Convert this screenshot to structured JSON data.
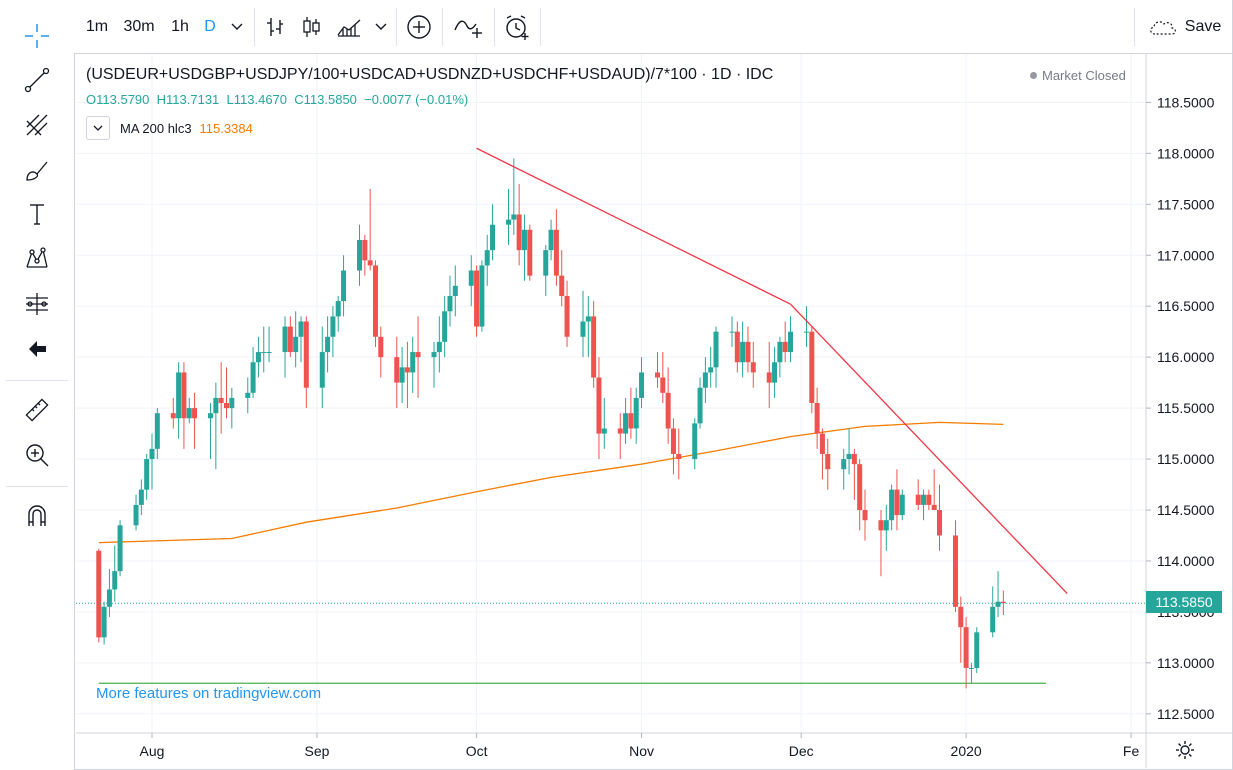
{
  "toolbar": {
    "intervals": [
      "1m",
      "30m",
      "1h",
      "D"
    ],
    "active_interval": "D",
    "save_label": "Save"
  },
  "legend": {
    "title": "(USDEUR+USDGBP+USDJPY/100+USDCAD+USDNZD+USDCHF+USDAUD)/7*100 · 1D · IDC",
    "open_label": "O",
    "open": "113.5790",
    "high_label": "H",
    "high": "113.7131",
    "low_label": "L",
    "low": "113.4670",
    "close_label": "C",
    "close": "113.5850",
    "change": "−0.0077 (−0.01%)",
    "ma_label": "MA 200 hlc3",
    "ma_value": "115.3384"
  },
  "status": "Market Closed",
  "promo": "More features on tradingview.com",
  "last_price": "113.5850",
  "colors": {
    "up": "#26a69a",
    "down": "#ef5350",
    "ma": "#f57c00",
    "trendline": "#f23645",
    "support": "#4caf50",
    "accent": "#2196f3"
  },
  "icons": [
    "crosshair-icon",
    "trend-line-icon",
    "pitchfork-icon",
    "brush-icon",
    "text-icon",
    "pattern-icon",
    "prediction-icon",
    "back-arrow-icon",
    "ruler-icon",
    "zoom-in-icon",
    "magnet-icon",
    "chevron-down-icon",
    "bar-chart-icon",
    "candles-icon",
    "area-chart-icon",
    "add-indicator-icon",
    "compare-icon",
    "alert-icon",
    "cloud-icon",
    "gear-icon"
  ],
  "chart_data": {
    "type": "candlestick",
    "y_ticks": [
      "118.5000",
      "118.0000",
      "117.5000",
      "117.0000",
      "116.5000",
      "116.0000",
      "115.5000",
      "115.0000",
      "114.5000",
      "114.0000",
      "113.5000",
      "113.0000",
      "112.5000"
    ],
    "x_ticks": [
      "Aug",
      "Sep",
      "Oct",
      "Nov",
      "Dec",
      "2020",
      "Fe"
    ],
    "ylim": [
      112.35,
      118.85
    ],
    "x_range": [
      "2019-07-22",
      "2020-02-03"
    ],
    "ohlc": [
      [
        "2019-07-22",
        114.1,
        114.12,
        113.2,
        113.25
      ],
      [
        "2019-07-23",
        113.25,
        113.6,
        113.18,
        113.55
      ],
      [
        "2019-07-24",
        113.55,
        113.92,
        113.45,
        113.72
      ],
      [
        "2019-07-25",
        113.72,
        114.15,
        113.6,
        113.9
      ],
      [
        "2019-07-26",
        113.9,
        114.4,
        113.85,
        114.35
      ],
      [
        "2019-07-29",
        114.35,
        114.65,
        114.3,
        114.55
      ],
      [
        "2019-07-30",
        114.55,
        114.8,
        114.45,
        114.7
      ],
      [
        "2019-07-31",
        114.7,
        115.05,
        114.6,
        115.0
      ],
      [
        "2019-08-01",
        115.0,
        115.25,
        114.7,
        115.1
      ],
      [
        "2019-08-02",
        115.1,
        115.5,
        115.0,
        115.45
      ],
      [
        "2019-08-05",
        115.45,
        115.6,
        115.3,
        115.4
      ],
      [
        "2019-08-06",
        115.4,
        115.95,
        115.2,
        115.85
      ],
      [
        "2019-08-07",
        115.85,
        115.95,
        115.1,
        115.4
      ],
      [
        "2019-08-08",
        115.4,
        115.6,
        115.35,
        115.5
      ],
      [
        "2019-08-09",
        115.5,
        115.65,
        115.1,
        115.4
      ],
      [
        "2019-08-12",
        115.4,
        115.55,
        115.0,
        115.45
      ],
      [
        "2019-08-13",
        115.45,
        115.75,
        114.9,
        115.6
      ],
      [
        "2019-08-14",
        115.6,
        115.95,
        115.25,
        115.55
      ],
      [
        "2019-08-15",
        115.55,
        115.9,
        115.4,
        115.5
      ],
      [
        "2019-08-16",
        115.5,
        115.7,
        115.3,
        115.6
      ],
      [
        "2019-08-19",
        115.6,
        115.8,
        115.45,
        115.65
      ],
      [
        "2019-08-20",
        115.65,
        116.1,
        115.6,
        115.95
      ],
      [
        "2019-08-21",
        115.95,
        116.2,
        115.8,
        116.05
      ],
      [
        "2019-08-22",
        116.05,
        116.3,
        115.85,
        116.05
      ],
      [
        "2019-08-23",
        116.05,
        116.3,
        115.95,
        116.05
      ],
      [
        "2019-08-26",
        116.05,
        116.4,
        115.8,
        116.3
      ],
      [
        "2019-08-27",
        116.3,
        116.4,
        116.0,
        116.05
      ],
      [
        "2019-08-28",
        116.05,
        116.45,
        115.9,
        116.2
      ],
      [
        "2019-08-29",
        116.2,
        116.4,
        115.95,
        116.35
      ],
      [
        "2019-08-30",
        116.35,
        116.4,
        115.5,
        115.7
      ],
      [
        "2019-09-02",
        115.7,
        116.3,
        115.5,
        116.05
      ],
      [
        "2019-09-03",
        116.05,
        116.4,
        115.85,
        116.2
      ],
      [
        "2019-09-04",
        116.2,
        116.5,
        116.0,
        116.4
      ],
      [
        "2019-09-05",
        116.4,
        116.6,
        116.25,
        116.55
      ],
      [
        "2019-09-06",
        116.55,
        117.0,
        116.4,
        116.85
      ],
      [
        "2019-09-09",
        116.85,
        117.3,
        116.7,
        117.15
      ],
      [
        "2019-09-10",
        117.15,
        117.2,
        116.8,
        116.95
      ],
      [
        "2019-09-11",
        116.95,
        117.65,
        116.85,
        116.9
      ],
      [
        "2019-09-12",
        116.9,
        116.95,
        116.1,
        116.2
      ],
      [
        "2019-09-13",
        116.2,
        116.3,
        115.8,
        116.0
      ],
      [
        "2019-09-16",
        116.0,
        116.2,
        115.5,
        115.75
      ],
      [
        "2019-09-17",
        115.75,
        116.1,
        115.55,
        115.9
      ],
      [
        "2019-09-18",
        115.9,
        116.15,
        115.5,
        115.85
      ],
      [
        "2019-09-19",
        115.85,
        116.2,
        115.65,
        116.05
      ],
      [
        "2019-09-20",
        116.05,
        116.4,
        115.6,
        116.0
      ],
      [
        "2019-09-23",
        116.0,
        116.15,
        115.7,
        116.05
      ],
      [
        "2019-09-24",
        116.05,
        116.4,
        115.85,
        116.15
      ],
      [
        "2019-09-25",
        116.15,
        116.6,
        116.0,
        116.45
      ],
      [
        "2019-09-26",
        116.45,
        116.8,
        116.3,
        116.6
      ],
      [
        "2019-09-27",
        116.6,
        116.9,
        116.4,
        116.7
      ],
      [
        "2019-09-30",
        116.7,
        117.0,
        116.5,
        116.85
      ],
      [
        "2019-10-01",
        116.85,
        116.9,
        116.2,
        116.3
      ],
      [
        "2019-10-02",
        116.3,
        116.95,
        116.25,
        116.9
      ],
      [
        "2019-10-03",
        116.9,
        117.2,
        116.7,
        117.05
      ],
      [
        "2019-10-04",
        117.05,
        117.5,
        116.95,
        117.3
      ],
      [
        "2019-10-07",
        117.3,
        117.65,
        117.1,
        117.35
      ],
      [
        "2019-10-08",
        117.35,
        117.95,
        117.2,
        117.4
      ],
      [
        "2019-10-09",
        117.4,
        117.7,
        116.9,
        117.05
      ],
      [
        "2019-10-10",
        117.05,
        117.4,
        116.75,
        117.25
      ],
      [
        "2019-10-11",
        117.25,
        117.3,
        116.75,
        116.8
      ],
      [
        "2019-10-14",
        116.8,
        117.1,
        116.6,
        117.05
      ],
      [
        "2019-10-15",
        117.05,
        117.35,
        116.95,
        117.25
      ],
      [
        "2019-10-16",
        117.25,
        117.45,
        116.7,
        116.8
      ],
      [
        "2019-10-17",
        116.8,
        117.05,
        116.5,
        116.6
      ],
      [
        "2019-10-18",
        116.6,
        116.75,
        116.1,
        116.2
      ],
      [
        "2019-10-21",
        116.2,
        116.65,
        116.0,
        116.35
      ],
      [
        "2019-10-22",
        116.35,
        116.6,
        116.0,
        116.4
      ],
      [
        "2019-10-23",
        116.4,
        116.55,
        115.7,
        115.8
      ],
      [
        "2019-10-24",
        115.8,
        116.0,
        115.0,
        115.25
      ],
      [
        "2019-10-25",
        115.25,
        115.6,
        115.1,
        115.3
      ],
      [
        "2019-10-28",
        115.3,
        115.45,
        115.0,
        115.25
      ],
      [
        "2019-10-29",
        115.25,
        115.6,
        115.15,
        115.45
      ],
      [
        "2019-10-30",
        115.45,
        115.7,
        115.2,
        115.3
      ],
      [
        "2019-10-31",
        115.3,
        115.7,
        115.15,
        115.6
      ],
      [
        "2019-11-01",
        115.6,
        116.0,
        115.5,
        115.85
      ],
      [
        "2019-11-04",
        115.85,
        116.05,
        115.7,
        115.8
      ],
      [
        "2019-11-05",
        115.8,
        116.05,
        115.55,
        115.65
      ],
      [
        "2019-11-06",
        115.65,
        115.9,
        115.15,
        115.3
      ],
      [
        "2019-11-07",
        115.3,
        115.4,
        114.85,
        115.05
      ],
      [
        "2019-11-08",
        115.05,
        115.3,
        114.8,
        115.0
      ],
      [
        "2019-11-11",
        115.0,
        115.4,
        114.9,
        115.35
      ],
      [
        "2019-11-12",
        115.35,
        115.8,
        115.3,
        115.7
      ],
      [
        "2019-11-13",
        115.7,
        116.0,
        115.55,
        115.85
      ],
      [
        "2019-11-14",
        115.85,
        116.1,
        115.7,
        115.9
      ],
      [
        "2019-11-15",
        115.9,
        116.3,
        115.7,
        116.25
      ],
      [
        "2019-11-18",
        116.25,
        116.4,
        116.1,
        116.25
      ],
      [
        "2019-11-19",
        116.25,
        116.35,
        115.85,
        115.95
      ],
      [
        "2019-11-20",
        115.95,
        116.35,
        115.8,
        116.15
      ],
      [
        "2019-11-21",
        116.15,
        116.3,
        115.85,
        115.95
      ],
      [
        "2019-11-22",
        115.95,
        116.15,
        115.7,
        115.85
      ],
      [
        "2019-11-25",
        115.85,
        116.15,
        115.5,
        115.75
      ],
      [
        "2019-11-26",
        115.75,
        116.1,
        115.6,
        115.95
      ],
      [
        "2019-11-27",
        115.95,
        116.2,
        115.8,
        116.15
      ],
      [
        "2019-11-28",
        116.15,
        116.35,
        115.95,
        116.05
      ],
      [
        "2019-11-29",
        116.05,
        116.4,
        115.95,
        116.25
      ],
      [
        "2019-12-02",
        116.25,
        116.5,
        116.1,
        116.25
      ],
      [
        "2019-12-03",
        116.25,
        116.3,
        115.45,
        115.55
      ],
      [
        "2019-12-04",
        115.55,
        115.7,
        115.1,
        115.25
      ],
      [
        "2019-12-05",
        115.25,
        115.3,
        114.8,
        115.05
      ],
      [
        "2019-12-06",
        115.05,
        115.2,
        114.7,
        114.9
      ],
      [
        "2019-12-09",
        114.9,
        115.1,
        114.7,
        115.0
      ],
      [
        "2019-12-10",
        115.0,
        115.3,
        114.85,
        115.05
      ],
      [
        "2019-12-11",
        115.05,
        115.1,
        114.6,
        114.95
      ],
      [
        "2019-12-12",
        114.95,
        115.0,
        114.3,
        114.5
      ],
      [
        "2019-12-13",
        114.5,
        114.7,
        114.2,
        114.4
      ],
      [
        "2019-12-16",
        114.4,
        114.5,
        113.85,
        114.3
      ],
      [
        "2019-12-17",
        114.3,
        114.55,
        114.1,
        114.4
      ],
      [
        "2019-12-18",
        114.4,
        114.75,
        114.3,
        114.7
      ],
      [
        "2019-12-19",
        114.7,
        114.9,
        114.3,
        114.45
      ],
      [
        "2019-12-20",
        114.45,
        114.7,
        114.4,
        114.65
      ],
      [
        "2019-12-23",
        114.65,
        114.8,
        114.5,
        114.55
      ],
      [
        "2019-12-24",
        114.55,
        114.7,
        114.4,
        114.65
      ],
      [
        "2019-12-25",
        114.65,
        114.7,
        114.5,
        114.55
      ],
      [
        "2019-12-26",
        114.55,
        114.9,
        114.5,
        114.5
      ],
      [
        "2019-12-27",
        114.5,
        114.75,
        114.1,
        114.25
      ],
      [
        "2019-12-30",
        114.25,
        114.4,
        113.5,
        113.55
      ],
      [
        "2019-12-31",
        113.55,
        113.65,
        113.0,
        113.35
      ],
      [
        "2020-01-01",
        113.35,
        113.45,
        112.75,
        112.95
      ],
      [
        "2020-01-02",
        112.95,
        113.0,
        112.8,
        112.95
      ],
      [
        "2020-01-03",
        112.95,
        113.35,
        112.9,
        113.3
      ],
      [
        "2020-01-06",
        113.3,
        113.75,
        113.25,
        113.55
      ],
      [
        "2020-01-07",
        113.55,
        113.9,
        113.45,
        113.6
      ],
      [
        "2020-01-08",
        113.6,
        113.71,
        113.47,
        113.585
      ]
    ],
    "ma200": [
      [
        "2019-07-22",
        114.18
      ],
      [
        "2019-08-16",
        114.22
      ],
      [
        "2019-08-30",
        114.38
      ],
      [
        "2019-09-16",
        114.52
      ],
      [
        "2019-10-01",
        114.68
      ],
      [
        "2019-10-15",
        114.82
      ],
      [
        "2019-11-01",
        114.95
      ],
      [
        "2019-11-15",
        115.08
      ],
      [
        "2019-11-29",
        115.22
      ],
      [
        "2019-12-13",
        115.32
      ],
      [
        "2019-12-27",
        115.36
      ],
      [
        "2020-01-08",
        115.34
      ]
    ],
    "trendline_1": [
      [
        "2019-10-01",
        118.05
      ],
      [
        "2019-11-29",
        116.52
      ]
    ],
    "trendline_2": [
      [
        "2019-11-29",
        116.52
      ],
      [
        "2020-01-20",
        113.68
      ]
    ],
    "support_line": [
      [
        "2019-07-22",
        112.8
      ],
      [
        "2020-01-16",
        112.8
      ]
    ],
    "last_price_line": 113.585
  }
}
